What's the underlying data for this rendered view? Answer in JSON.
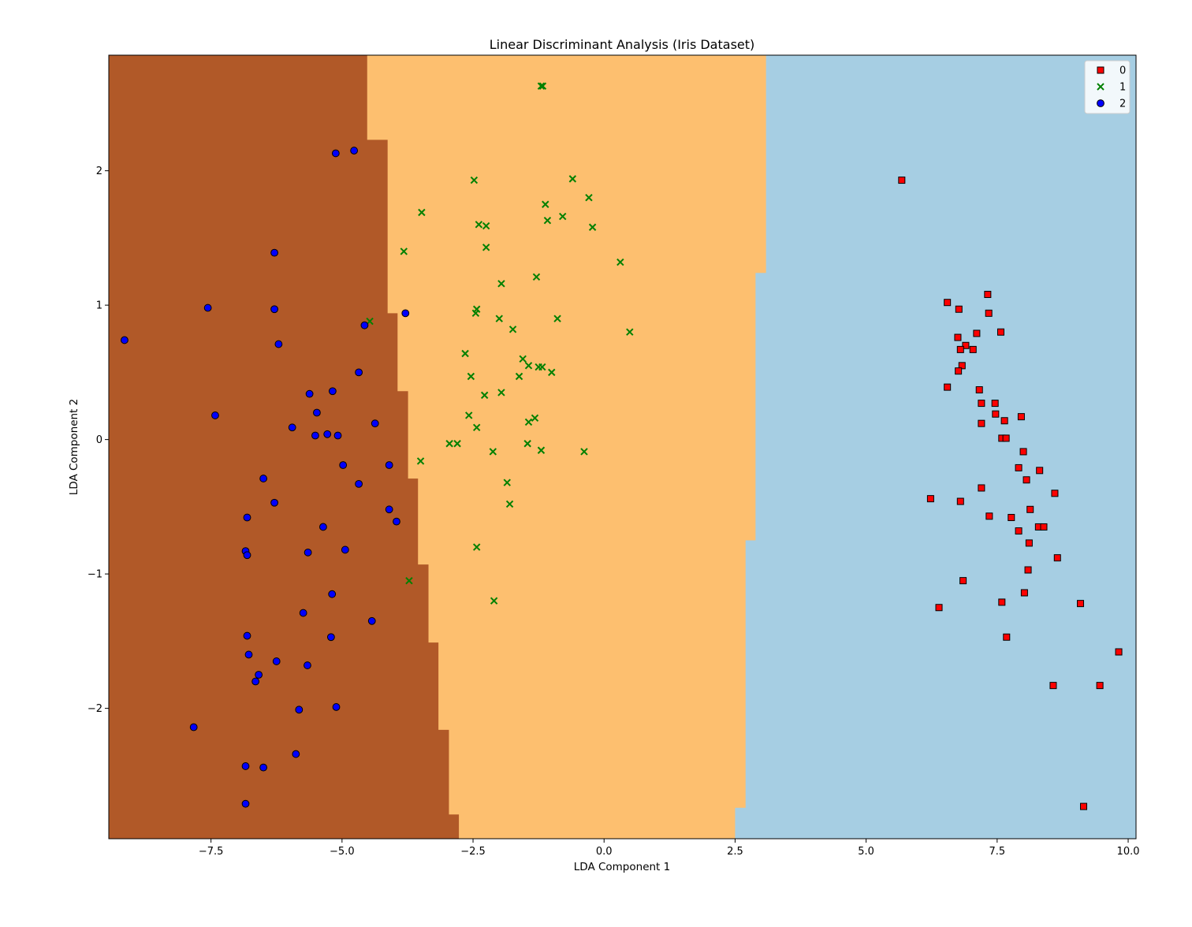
{
  "chart_data": {
    "type": "scatter",
    "title": "Linear Discriminant Analysis (Iris Dataset)",
    "xlabel": "LDA Component 1",
    "ylabel": "LDA Component 2",
    "xlim": [
      -9.45,
      10.15
    ],
    "ylim": [
      -2.97,
      2.86
    ],
    "xticks": [
      -7.5,
      -5.0,
      -2.5,
      0.0,
      2.5,
      5.0,
      7.5,
      10.0
    ],
    "xtick_labels": [
      "−7.5",
      "−5.0",
      "−2.5",
      "0.0",
      "2.5",
      "5.0",
      "7.5",
      "10.0"
    ],
    "yticks": [
      -2,
      -1,
      0,
      1,
      2
    ],
    "ytick_labels": [
      "−2",
      "−1",
      "0",
      "1",
      "2"
    ],
    "grid": false,
    "legend_position": "top-right",
    "regions": {
      "colors": {
        "0": "#a6cee3",
        "1": "#fdbf6f",
        "2": "#b15928"
      },
      "boundary_1_2": [
        {
          "y_top": 2.86,
          "x": -4.52
        },
        {
          "y_top": 2.23,
          "x": -4.13
        },
        {
          "y_top": 1.58,
          "x": -4.13
        },
        {
          "y_top": 0.94,
          "x": -3.94
        },
        {
          "y_top": 0.36,
          "x": -3.74
        },
        {
          "y_top": -0.29,
          "x": -3.55
        },
        {
          "y_top": -0.93,
          "x": -3.35
        },
        {
          "y_top": -1.51,
          "x": -3.16
        },
        {
          "y_top": -2.16,
          "x": -2.96
        },
        {
          "y_top": -2.79,
          "x": -2.77
        }
      ],
      "boundary_0_1": [
        {
          "y_top": 2.86,
          "x": 3.09
        },
        {
          "y_top": 1.24,
          "x": 2.89
        },
        {
          "y_top": -0.75,
          "x": 2.7
        },
        {
          "y_top": -2.74,
          "x": 2.5
        }
      ]
    },
    "series": [
      {
        "name": "0",
        "marker": "square",
        "color": "#ff0000",
        "edge": "#000000",
        "points": [
          [
            5.68,
            1.93
          ],
          [
            6.55,
            1.02
          ],
          [
            6.77,
            0.97
          ],
          [
            7.32,
            1.08
          ],
          [
            7.34,
            0.94
          ],
          [
            7.57,
            0.8
          ],
          [
            6.75,
            0.76
          ],
          [
            7.11,
            0.79
          ],
          [
            6.9,
            0.7
          ],
          [
            6.8,
            0.67
          ],
          [
            7.04,
            0.67
          ],
          [
            6.83,
            0.55
          ],
          [
            6.76,
            0.51
          ],
          [
            6.55,
            0.39
          ],
          [
            7.16,
            0.37
          ],
          [
            7.2,
            0.27
          ],
          [
            7.46,
            0.27
          ],
          [
            7.47,
            0.19
          ],
          [
            7.96,
            0.17
          ],
          [
            7.64,
            0.14
          ],
          [
            7.2,
            0.12
          ],
          [
            7.59,
            0.01
          ],
          [
            7.67,
            0.01
          ],
          [
            8.0,
            -0.09
          ],
          [
            7.91,
            -0.21
          ],
          [
            8.31,
            -0.23
          ],
          [
            8.06,
            -0.3
          ],
          [
            7.2,
            -0.36
          ],
          [
            8.6,
            -0.4
          ],
          [
            6.23,
            -0.44
          ],
          [
            6.8,
            -0.46
          ],
          [
            8.13,
            -0.52
          ],
          [
            7.77,
            -0.58
          ],
          [
            7.35,
            -0.57
          ],
          [
            8.29,
            -0.65
          ],
          [
            8.39,
            -0.65
          ],
          [
            7.91,
            -0.68
          ],
          [
            8.11,
            -0.77
          ],
          [
            8.65,
            -0.88
          ],
          [
            8.09,
            -0.97
          ],
          [
            6.85,
            -1.05
          ],
          [
            8.02,
            -1.14
          ],
          [
            7.59,
            -1.21
          ],
          [
            9.09,
            -1.22
          ],
          [
            6.39,
            -1.25
          ],
          [
            7.68,
            -1.47
          ],
          [
            9.82,
            -1.58
          ],
          [
            8.57,
            -1.83
          ],
          [
            9.46,
            -1.83
          ],
          [
            9.15,
            -2.73
          ]
        ]
      },
      {
        "name": "1",
        "marker": "x",
        "color": "#008000",
        "points": [
          [
            -1.17,
            2.63
          ],
          [
            -1.2,
            2.63
          ],
          [
            -0.6,
            1.94
          ],
          [
            -2.48,
            1.93
          ],
          [
            -0.29,
            1.8
          ],
          [
            -1.12,
            1.75
          ],
          [
            -3.48,
            1.69
          ],
          [
            -0.79,
            1.66
          ],
          [
            -1.08,
            1.63
          ],
          [
            -2.39,
            1.6
          ],
          [
            -2.25,
            1.59
          ],
          [
            -0.22,
            1.58
          ],
          [
            -2.25,
            1.43
          ],
          [
            -3.82,
            1.4
          ],
          [
            0.31,
            1.32
          ],
          [
            -1.29,
            1.21
          ],
          [
            -1.96,
            1.16
          ],
          [
            -2.43,
            0.97
          ],
          [
            -2.45,
            0.94
          ],
          [
            -2.0,
            0.9
          ],
          [
            -0.89,
            0.9
          ],
          [
            -4.47,
            0.88
          ],
          [
            -1.74,
            0.82
          ],
          [
            0.49,
            0.8
          ],
          [
            -2.65,
            0.64
          ],
          [
            -1.55,
            0.6
          ],
          [
            -1.44,
            0.55
          ],
          [
            -1.25,
            0.54
          ],
          [
            -1.18,
            0.54
          ],
          [
            -1.0,
            0.5
          ],
          [
            -2.54,
            0.47
          ],
          [
            -1.62,
            0.47
          ],
          [
            -2.28,
            0.33
          ],
          [
            -1.96,
            0.35
          ],
          [
            -2.58,
            0.18
          ],
          [
            -1.32,
            0.16
          ],
          [
            -1.44,
            0.13
          ],
          [
            -2.43,
            0.09
          ],
          [
            -2.95,
            -0.03
          ],
          [
            -2.8,
            -0.03
          ],
          [
            -1.46,
            -0.03
          ],
          [
            -2.12,
            -0.09
          ],
          [
            -1.2,
            -0.08
          ],
          [
            -0.38,
            -0.09
          ],
          [
            -3.5,
            -0.16
          ],
          [
            -1.85,
            -0.32
          ],
          [
            -1.8,
            -0.48
          ],
          [
            -2.43,
            -0.8
          ],
          [
            -3.72,
            -1.05
          ],
          [
            -2.1,
            -1.2
          ]
        ]
      },
      {
        "name": "2",
        "marker": "circle",
        "color": "#0000ff",
        "edge": "#000000",
        "points": [
          [
            -4.77,
            2.15
          ],
          [
            -5.12,
            2.13
          ],
          [
            -6.29,
            1.39
          ],
          [
            -7.56,
            0.98
          ],
          [
            -6.29,
            0.97
          ],
          [
            -3.79,
            0.94
          ],
          [
            -9.15,
            0.74
          ],
          [
            -6.21,
            0.71
          ],
          [
            -4.57,
            0.85
          ],
          [
            -4.68,
            0.5
          ],
          [
            -5.62,
            0.34
          ],
          [
            -5.18,
            0.36
          ],
          [
            -7.42,
            0.18
          ],
          [
            -5.48,
            0.2
          ],
          [
            -4.37,
            0.12
          ],
          [
            -5.95,
            0.09
          ],
          [
            -5.28,
            0.04
          ],
          [
            -5.51,
            0.03
          ],
          [
            -5.08,
            0.03
          ],
          [
            -6.5,
            -0.29
          ],
          [
            -4.98,
            -0.19
          ],
          [
            -4.1,
            -0.19
          ],
          [
            -4.68,
            -0.33
          ],
          [
            -6.29,
            -0.47
          ],
          [
            -4.1,
            -0.52
          ],
          [
            -6.81,
            -0.58
          ],
          [
            -3.96,
            -0.61
          ],
          [
            -5.36,
            -0.65
          ],
          [
            -6.84,
            -0.83
          ],
          [
            -5.65,
            -0.84
          ],
          [
            -4.94,
            -0.82
          ],
          [
            -6.81,
            -0.86
          ],
          [
            -5.19,
            -1.15
          ],
          [
            -5.74,
            -1.29
          ],
          [
            -4.43,
            -1.35
          ],
          [
            -6.81,
            -1.46
          ],
          [
            -5.21,
            -1.47
          ],
          [
            -6.78,
            -1.6
          ],
          [
            -6.25,
            -1.65
          ],
          [
            -5.66,
            -1.68
          ],
          [
            -6.59,
            -1.75
          ],
          [
            -6.65,
            -1.8
          ],
          [
            -5.82,
            -2.01
          ],
          [
            -5.11,
            -1.99
          ],
          [
            -7.83,
            -2.14
          ],
          [
            -5.88,
            -2.34
          ],
          [
            -6.84,
            -2.43
          ],
          [
            -6.5,
            -2.44
          ],
          [
            -6.84,
            -2.71
          ]
        ]
      }
    ]
  }
}
